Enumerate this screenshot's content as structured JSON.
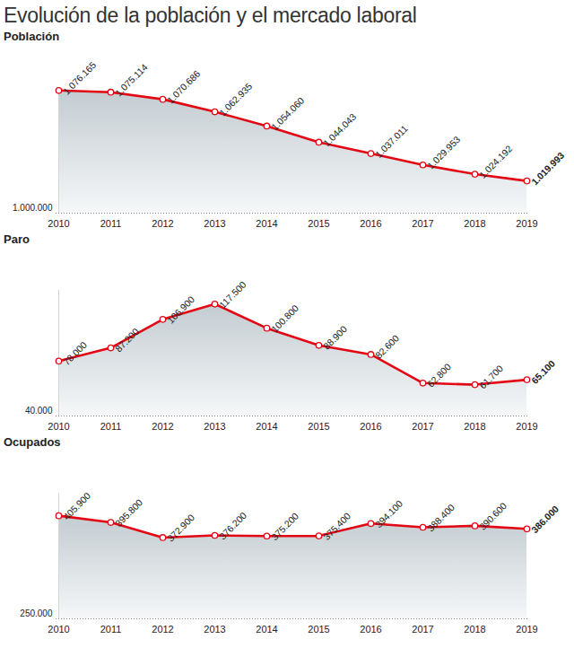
{
  "title": "Evolución de la población y el mercado laboral",
  "chart_data": [
    {
      "type": "area",
      "title": "Población",
      "categories": [
        "2010",
        "2011",
        "2012",
        "2013",
        "2014",
        "2015",
        "2016",
        "2017",
        "2018",
        "2019"
      ],
      "values": [
        1076165,
        1075114,
        1070686,
        1062935,
        1054060,
        1044043,
        1037011,
        1029953,
        1024192,
        1019993
      ],
      "value_labels": [
        "1.076.165",
        "1.075.114",
        "1.070.686",
        "1.062.935",
        "1.054.060",
        "1.044.043",
        "1.037.011",
        "1.029.953",
        "1.024.192",
        "1.019.993"
      ],
      "color": "#e30613",
      "marker": "circle",
      "data_labels": true,
      "grid": false,
      "ylim": [
        1000000,
        1078000
      ],
      "yticks": [
        {
          "value": 1000000,
          "label": "1.000.000"
        }
      ]
    },
    {
      "type": "area",
      "title": "Paro",
      "categories": [
        "2010",
        "2011",
        "2012",
        "2013",
        "2014",
        "2015",
        "2016",
        "2017",
        "2018",
        "2019"
      ],
      "values": [
        78000,
        87200,
        106900,
        117500,
        100800,
        88900,
        82600,
        62800,
        61700,
        65100
      ],
      "value_labels": [
        "78.000",
        "87.200",
        "106.900",
        "117.500",
        "100.800",
        "88.900",
        "82.600",
        "62.800",
        "61.700",
        "65.100"
      ],
      "color": "#e30613",
      "marker": "circle",
      "data_labels": true,
      "grid": false,
      "ylim": [
        40000,
        127000
      ],
      "yticks": [
        {
          "value": 40000,
          "label": "40.000"
        }
      ]
    },
    {
      "type": "area",
      "title": "Ocupados",
      "categories": [
        "2010",
        "2011",
        "2012",
        "2013",
        "2014",
        "2015",
        "2016",
        "2017",
        "2018",
        "2019"
      ],
      "values": [
        405900,
        395800,
        372900,
        376200,
        375200,
        375400,
        394100,
        388400,
        390600,
        386000
      ],
      "value_labels": [
        "405.900",
        "395.800",
        "372.900",
        "376.200",
        "375.200",
        "375.400",
        "394.100",
        "388.400",
        "390.600",
        "386.000"
      ],
      "color": "#e30613",
      "marker": "circle",
      "data_labels": true,
      "grid": false,
      "ylim": [
        250000,
        440000
      ],
      "yticks": [
        {
          "value": 250000,
          "label": "250.000"
        }
      ]
    }
  ]
}
